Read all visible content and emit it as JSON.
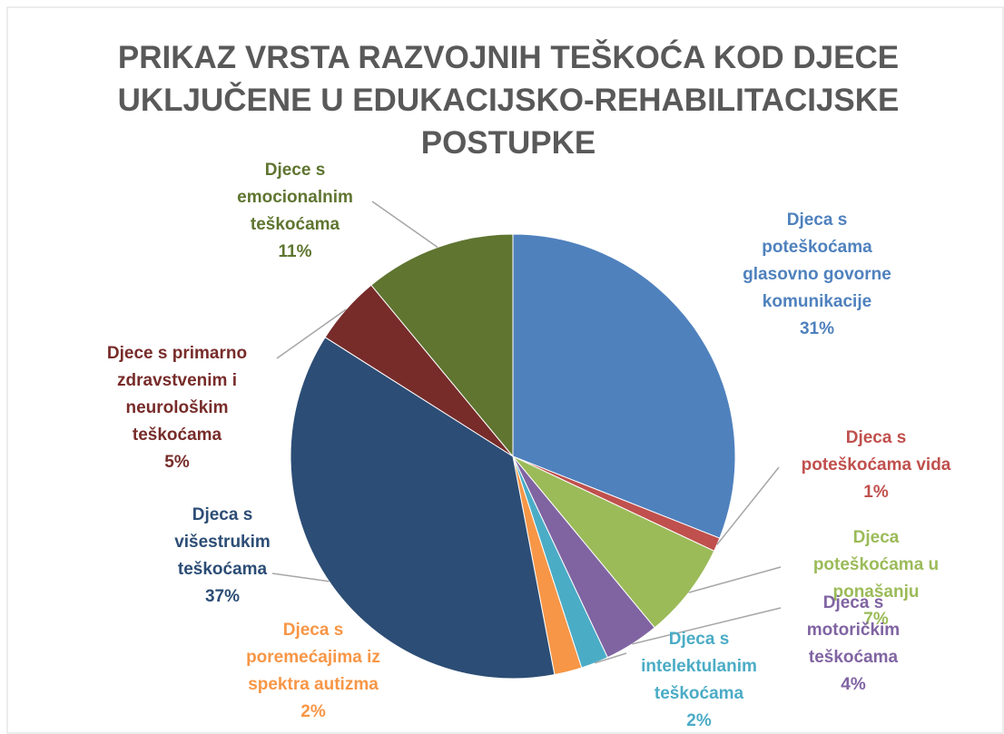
{
  "chart_data": {
    "type": "pie",
    "title": "PRIKAZ VRSTA RAZVOJNIH TEŠKOĆA KOD DJECE UKLJUČENE U EDUKACIJSKO-REHABILITACIJSKE POSTUPKE",
    "categories": [
      "Djeca s poteškoćama glasovno govorne komunikacije",
      "Djeca s poteškoćama vida",
      "Djeca poteškoćama u ponašanju",
      "Djeca s motoričkim teškoćama",
      "Djeca s intelektulanim teškoćama",
      "Djeca s poremećajima iz spektra autizma",
      "Djeca s višestrukim teškoćama",
      "Djece s primarno zdravstvenim i neurološkim teškoćama",
      "Djece s emocionalnim teškoćama"
    ],
    "values": [
      31,
      1,
      7,
      4,
      2,
      2,
      37,
      5,
      11
    ],
    "value_labels": [
      "31%",
      "1%",
      "7%",
      "4%",
      "2%",
      "2%",
      "37%",
      "5%",
      "11%"
    ],
    "colors": [
      "#4f81bd",
      "#c0504d",
      "#9bbb59",
      "#8064a2",
      "#4bacc6",
      "#f79646",
      "#2c4d75",
      "#772c2a",
      "#5f7530"
    ]
  }
}
